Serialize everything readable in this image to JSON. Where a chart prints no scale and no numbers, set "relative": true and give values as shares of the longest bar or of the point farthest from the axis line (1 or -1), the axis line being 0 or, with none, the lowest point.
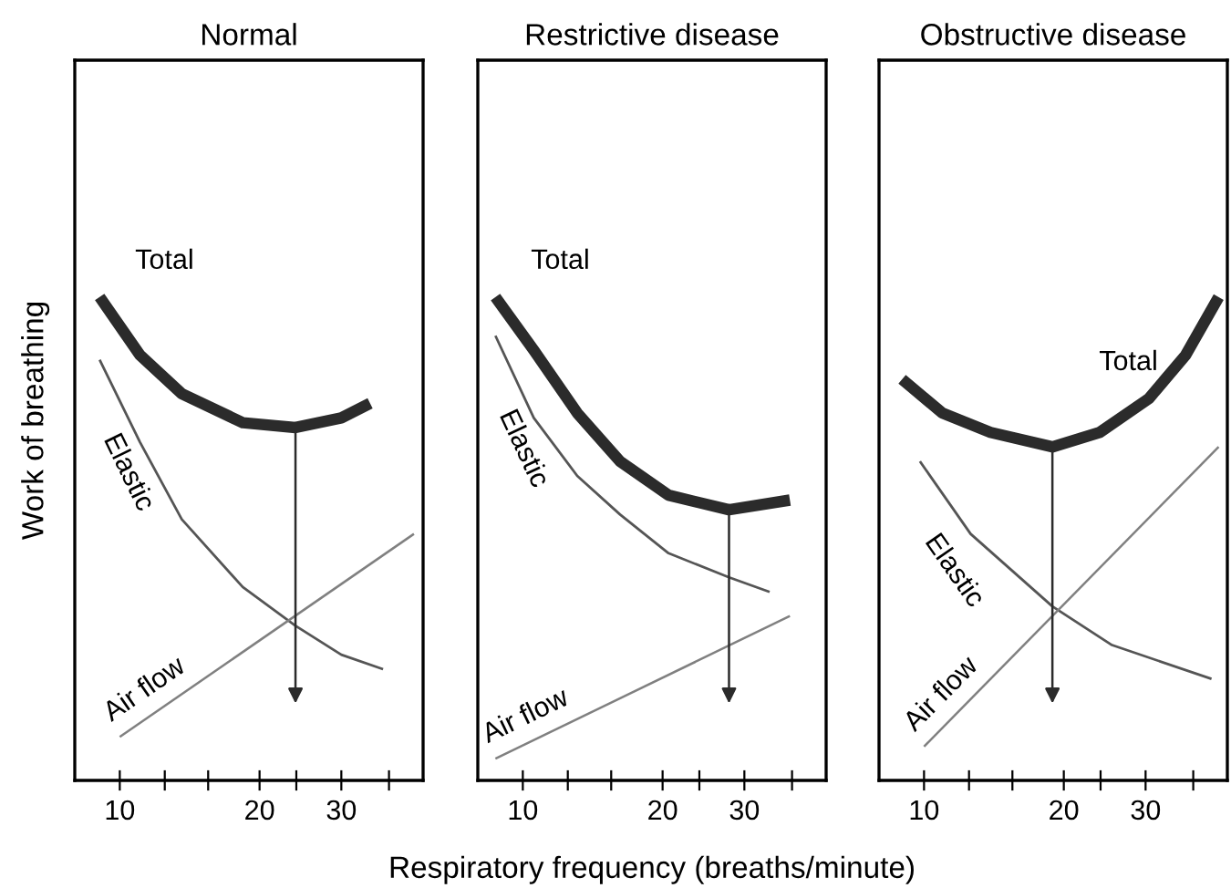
{
  "chart_data": [
    {
      "type": "line",
      "title": "Normal",
      "ylabel": "Work of breathing",
      "relative": true,
      "log": "x",
      "xlim": [
        8,
        45
      ],
      "xticks": [
        10,
        {
          "value": 12.5,
          "label": null
        },
        {
          "value": 15.5,
          "label": null
        },
        20,
        {
          "value": 24,
          "label": null
        },
        30,
        {
          "value": 38,
          "label": null
        }
      ],
      "tick_labels": "x",
      "grid": false,
      "legend": false,
      "series": [
        {
          "name": "Total",
          "color": "#2b2b2b",
          "x": [
            9.05,
            11.05,
            13.6,
            18.4,
            23.9,
            30,
            34.6
          ],
          "values": [
            1,
            0.88,
            0.8,
            0.74,
            0.73,
            0.75,
            0.78
          ]
        },
        {
          "name": "Elastic",
          "color": "#555555",
          "x": [
            9.05,
            11.05,
            13.6,
            18.4,
            23.9,
            30,
            36.9
          ],
          "values": [
            0.87,
            0.7,
            0.54,
            0.4,
            0.32,
            0.26,
            0.23
          ]
        },
        {
          "name": "Air flow",
          "color": "#808080",
          "x": [
            10,
            43
          ],
          "values": [
            0.09,
            0.51
          ]
        }
      ]
    },
    {
      "type": "line",
      "title": "Restrictive disease",
      "xlabel": "Respiratory frequency (breaths/minute)",
      "relative": true,
      "log": "x",
      "xlim": [
        8,
        45
      ],
      "xticks": [
        10,
        {
          "value": 12.5,
          "label": null
        },
        {
          "value": 15.5,
          "label": null
        },
        20,
        {
          "value": 24,
          "label": null
        },
        30,
        {
          "value": 38,
          "label": null
        }
      ],
      "tick_labels": "x",
      "grid": false,
      "legend": false,
      "series": [
        {
          "name": "Total",
          "color": "#2b2b2b",
          "x": [
            8.73,
            10.56,
            13.1,
            16.2,
            20.6,
            27.8,
            37.6
          ],
          "values": [
            1,
            0.89,
            0.76,
            0.66,
            0.59,
            0.56,
            0.58
          ]
        },
        {
          "name": "Elastic",
          "color": "#555555",
          "x": [
            8.73,
            10.56,
            13.1,
            16.2,
            20.6,
            27.8,
            34
          ],
          "values": [
            0.92,
            0.75,
            0.63,
            0.55,
            0.47,
            0.42,
            0.39
          ]
        },
        {
          "name": "Air flow",
          "color": "#808080",
          "x": [
            8.73,
            37.6
          ],
          "values": [
            0.045,
            0.34
          ]
        }
      ]
    },
    {
      "type": "line",
      "title": "Obstructive disease",
      "relative": true,
      "log": "x",
      "xlim": [
        8,
        45
      ],
      "xticks": [
        10,
        {
          "value": 12.5,
          "label": null
        },
        {
          "value": 15.5,
          "label": null
        },
        20,
        {
          "value": 24,
          "label": null
        },
        30,
        {
          "value": 38,
          "label": null
        }
      ],
      "tick_labels": "x",
      "grid": false,
      "legend": false,
      "series": [
        {
          "name": "Total",
          "color": "#2b2b2b",
          "x": [
            8.97,
            10.95,
            13.9,
            18.9,
            23.9,
            30.5,
            36.6,
            43.1
          ],
          "values": [
            0.83,
            0.76,
            0.72,
            0.69,
            0.72,
            0.79,
            0.88,
            1
          ]
        },
        {
          "name": "Elastic",
          "color": "#555555",
          "x": [
            9.8,
            12.6,
            18.9,
            25.4,
            41.6
          ],
          "values": [
            0.66,
            0.51,
            0.36,
            0.28,
            0.21
          ]
        },
        {
          "name": "Air flow",
          "color": "#808080",
          "x": [
            10,
            43.1
          ],
          "values": [
            0.07,
            0.69
          ]
        }
      ]
    }
  ]
}
